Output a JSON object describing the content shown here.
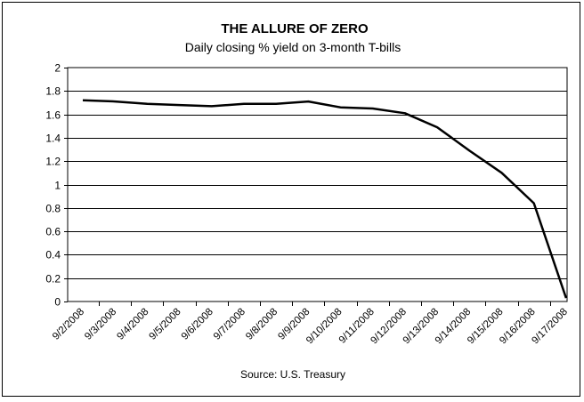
{
  "chart_data": {
    "type": "line",
    "title": "THE ALLURE OF ZERO",
    "subtitle": "Daily closing % yield on 3-month T-bills",
    "source": "Source: U.S. Treasury",
    "xlabel": "",
    "ylabel": "",
    "ylim": [
      0,
      2
    ],
    "yticks": [
      "0",
      "0.2",
      "0.4",
      "0.6",
      "0.8",
      "1",
      "1.2",
      "1.4",
      "1.6",
      "1.8",
      "2"
    ],
    "grid": true,
    "categories": [
      "9/2/2008",
      "9/3/2008",
      "9/4/2008",
      "9/5/2008",
      "9/6/2008",
      "9/7/2008",
      "9/8/2008",
      "9/9/2008",
      "9/10/2008",
      "9/11/2008",
      "9/12/2008",
      "9/13/2008",
      "9/14/2008",
      "9/15/2008",
      "9/16/2008",
      "9/17/2008"
    ],
    "values": [
      1.72,
      1.71,
      1.69,
      1.68,
      1.67,
      1.69,
      1.69,
      1.71,
      1.66,
      1.65,
      1.61,
      1.49,
      1.29,
      1.1,
      0.84,
      0.03
    ],
    "line_color": "#000000"
  }
}
